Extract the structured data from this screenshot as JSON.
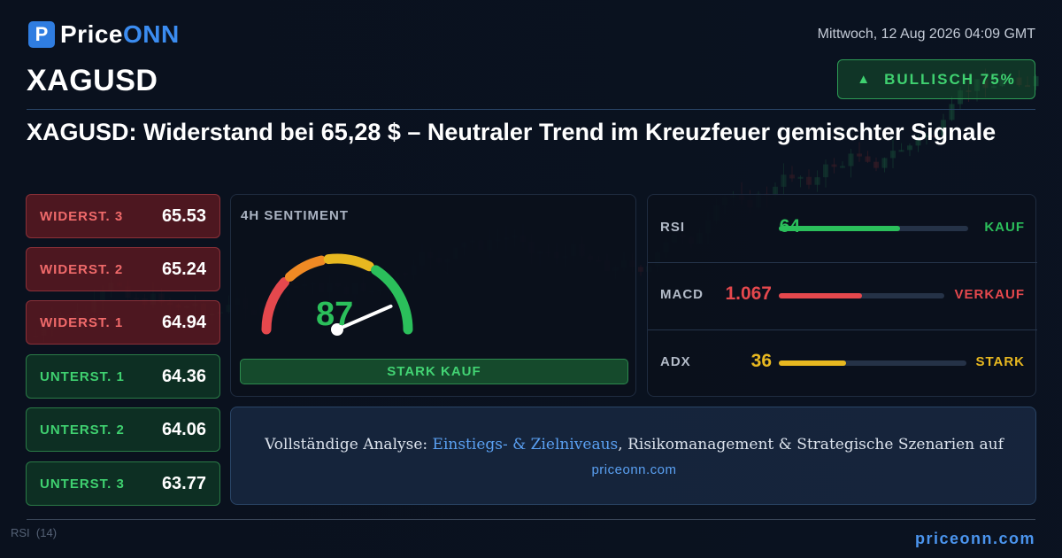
{
  "brand": {
    "name_main": "Price",
    "name_accent": "ONN",
    "mark": "P"
  },
  "header": {
    "datetime": "Mittwoch, 12 Aug 2026 04:09 GMT",
    "symbol": "XAGUSD",
    "bias": {
      "label": "BULLISCH 75%",
      "icon": "triangle-up-icon",
      "color": "#3fd170"
    }
  },
  "headline": "XAGUSD: Widerstand bei 65,28 $ – Neutraler Trend im Kreuzfeuer gemischter Signale",
  "levels": [
    {
      "label": "WIDERST. 3",
      "value": "65.53",
      "kind": "resistance"
    },
    {
      "label": "WIDERST. 2",
      "value": "65.24",
      "kind": "resistance"
    },
    {
      "label": "WIDERST. 1",
      "value": "64.94",
      "kind": "resistance"
    },
    {
      "label": "UNTERST. 1",
      "value": "64.36",
      "kind": "support"
    },
    {
      "label": "UNTERST. 2",
      "value": "64.06",
      "kind": "support"
    },
    {
      "label": "UNTERST. 3",
      "value": "63.77",
      "kind": "support"
    }
  ],
  "sentiment": {
    "title": "4H SENTIMENT",
    "value": 87,
    "value_text": "87",
    "signal": "STARK KAUF",
    "colors": {
      "red": "#e5484d",
      "orange": "#f08a24",
      "yellow": "#e8b820",
      "green": "#2bbf5b"
    }
  },
  "indicators": [
    {
      "name": "RSI",
      "value": "64",
      "level": 0.64,
      "signal": "KAUF",
      "color": "#2bbf5b"
    },
    {
      "name": "MACD",
      "value": "1.067",
      "level": 0.5,
      "signal": "VERKAUF",
      "color": "#e5484d"
    },
    {
      "name": "ADX",
      "value": "36",
      "level": 0.36,
      "signal": "STARK",
      "color": "#e8b820"
    }
  ],
  "cta": {
    "prefix": "Vollständige Analyse: ",
    "highlight": "Einstiegs- & Zielniveaus",
    "suffix": ", Risikomanagement & Strategische Szenarien auf",
    "site": "priceonn.com"
  },
  "background": {
    "rsi_label": "RSI",
    "rsi_period": "(14)"
  },
  "footer": {
    "site": "priceonn.com"
  }
}
